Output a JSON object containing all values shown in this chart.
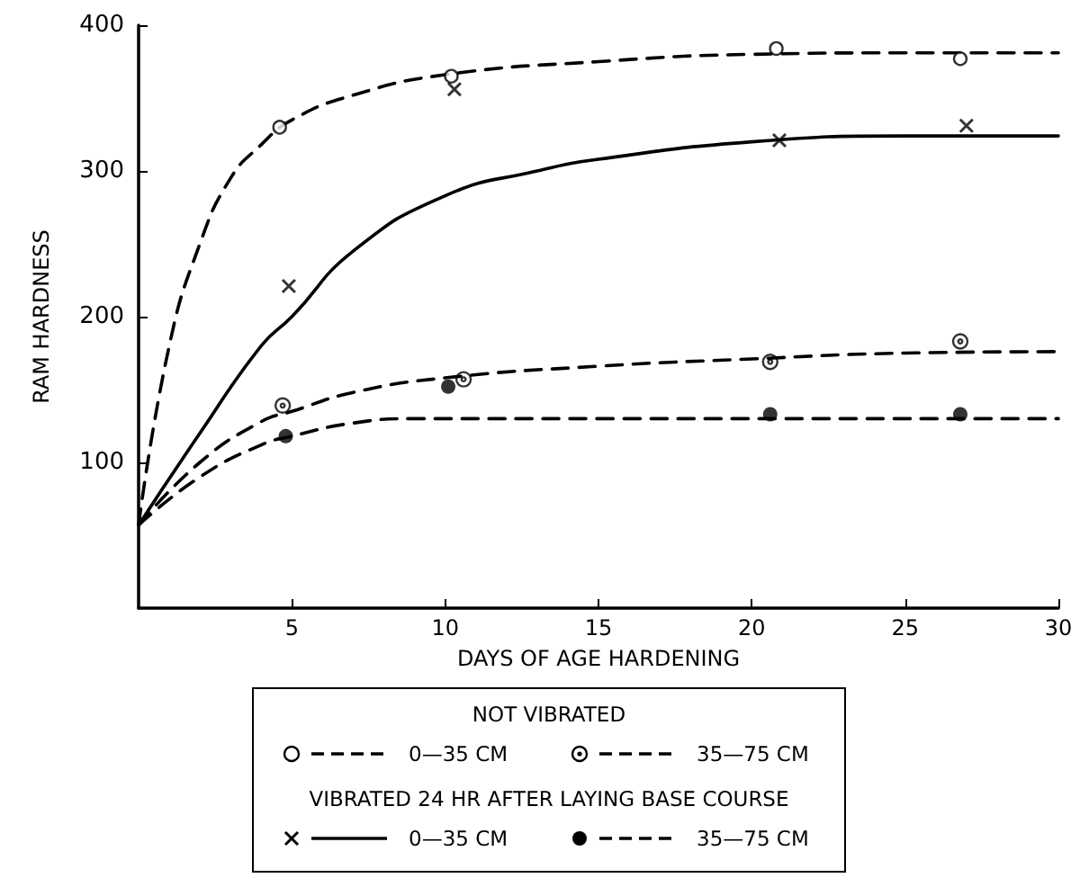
{
  "chart_data": {
    "type": "scatter",
    "xlabel": "DAYS OF AGE HARDENING",
    "ylabel": "RAM HARDNESS",
    "xlim": [
      0,
      30
    ],
    "xticks": [
      5,
      10,
      15,
      20,
      25,
      30
    ],
    "ylim": [
      0,
      400
    ],
    "yticks": [
      100,
      200,
      300,
      400
    ],
    "grid": false,
    "legend": "bottom",
    "annotations": [
      "NOT VIBRATED",
      "VIBRATED 24 HR AFTER LAYING BASE COURSE"
    ],
    "series": [
      {
        "type": "scatter",
        "name": "0—35 CM",
        "color": "#000000",
        "marker": "circle",
        "x": [
          4.6,
          10.2,
          20.8,
          26.8
        ],
        "values": [
          330,
          365,
          384,
          377
        ]
      },
      {
        "type": "line",
        "color": "#000000",
        "marker": "none",
        "line_style": "dashed",
        "x": [
          0,
          1,
          2,
          3,
          4,
          5,
          7,
          10,
          15,
          20,
          25,
          30
        ],
        "values": [
          57,
          180,
          250,
          295,
          318,
          335,
          352,
          366,
          375,
          380,
          381,
          381
        ]
      },
      {
        "type": "scatter",
        "name": "35—75 CM",
        "color": "#000000",
        "marker": "circle",
        "x": [
          4.7,
          10.6,
          20.6,
          26.8
        ],
        "values": [
          139,
          157,
          169,
          183
        ]
      },
      {
        "type": "line",
        "color": "#000000",
        "marker": "none",
        "line_style": "dashed",
        "x": [
          0,
          2,
          4,
          5,
          7,
          10,
          15,
          20,
          25,
          30
        ],
        "values": [
          57,
          100,
          128,
          135,
          148,
          158,
          166,
          171,
          175,
          176
        ]
      },
      {
        "type": "scatter",
        "name": "0—35 CM",
        "color": "#000000",
        "marker": "cross",
        "x": [
          4.9,
          10.3,
          20.9,
          27
        ],
        "values": [
          221,
          356,
          321,
          331
        ]
      },
      {
        "type": "line",
        "color": "#000000",
        "marker": "none",
        "line_style": "solid",
        "x": [
          0,
          2,
          4,
          5,
          7,
          10,
          13,
          15,
          20,
          25,
          30
        ],
        "values": [
          57,
          120,
          180,
          200,
          245,
          283,
          300,
          308,
          320,
          324,
          324
        ]
      },
      {
        "type": "scatter",
        "name": "35—75 CM",
        "color": "#000000",
        "marker": "circle",
        "x": [
          4.8,
          10.1,
          20.6,
          26.8
        ],
        "values": [
          118,
          152,
          133,
          133
        ]
      },
      {
        "type": "line",
        "color": "#000000",
        "marker": "none",
        "line_style": "dashed",
        "x": [
          0,
          2,
          4,
          5,
          7,
          9,
          15,
          30
        ],
        "values": [
          57,
          90,
          112,
          118,
          127,
          130,
          130,
          130
        ]
      }
    ]
  }
}
